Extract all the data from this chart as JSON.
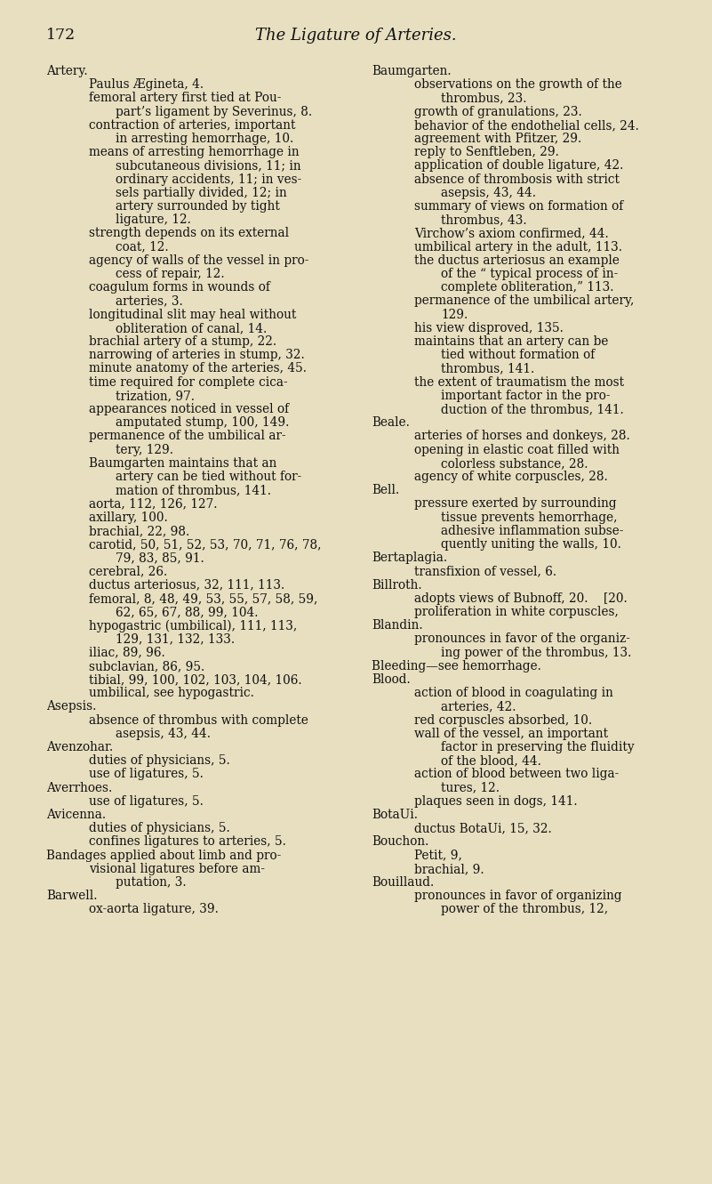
{
  "background_color": "#e8dfc0",
  "page_number": "172",
  "page_title": "The Ligature of Arteries.",
  "title_fontsize": 13.0,
  "page_num_fontsize": 12.5,
  "body_fontsize": 9.8,
  "left_column": [
    [
      "Artery.",
      0
    ],
    [
      "Paulus Ægineta, 4.",
      1
    ],
    [
      "femoral artery first tied at Pou-",
      1
    ],
    [
      "part’s ligament by Severinus, 8.",
      2
    ],
    [
      "contraction of arteries, important",
      1
    ],
    [
      "in arresting hemorrhage, 10.",
      2
    ],
    [
      "means of arresting hemorrhage in",
      1
    ],
    [
      "subcutaneous divisions, 11; in",
      2
    ],
    [
      "ordinary accidents, 11; in ves-",
      2
    ],
    [
      "sels partially divided, 12; in",
      2
    ],
    [
      "artery surrounded by tight",
      2
    ],
    [
      "ligature, 12.",
      2
    ],
    [
      "strength depends on its external",
      1
    ],
    [
      "coat, 12.",
      2
    ],
    [
      "agency of walls of the vessel in pro-",
      1
    ],
    [
      "cess of repair, 12.",
      2
    ],
    [
      "coagulum forms in wounds of",
      1
    ],
    [
      "arteries, 3.",
      2
    ],
    [
      "longitudinal slit may heal without",
      1
    ],
    [
      "obliteration of canal, 14.",
      2
    ],
    [
      "brachial artery of a stump, 22.",
      1
    ],
    [
      "narrowing of arteries in stump, 32.",
      1
    ],
    [
      "minute anatomy of the arteries, 45.",
      1
    ],
    [
      "time required for complete cica-",
      1
    ],
    [
      "trization, 97.",
      2
    ],
    [
      "appearances noticed in vessel of",
      1
    ],
    [
      "amputated stump, 100, 149.",
      2
    ],
    [
      "permanence of the umbilical ar-",
      1
    ],
    [
      "tery, 129.",
      2
    ],
    [
      "Baumgarten maintains that an",
      1
    ],
    [
      "artery can be tied without for-",
      2
    ],
    [
      "mation of thrombus, 141.",
      2
    ],
    [
      "aorta, 112, 126, 127.",
      1
    ],
    [
      "axillary, 100.",
      1
    ],
    [
      "brachial, 22, 98.",
      1
    ],
    [
      "carotid, 50, 51, 52, 53, 70, 71, 76, 78,",
      1
    ],
    [
      "79, 83, 85, 91.",
      2
    ],
    [
      "cerebral, 26.",
      1
    ],
    [
      "ductus arteriosus, 32, 111, 113.",
      1
    ],
    [
      "femoral, 8, 48, 49, 53, 55, 57, 58, 59,",
      1
    ],
    [
      "62, 65, 67, 88, 99, 104.",
      2
    ],
    [
      "hypogastric (umbilical), 111, 113,",
      1
    ],
    [
      "129, 131, 132, 133.",
      2
    ],
    [
      "iliac, 89, 96.",
      1
    ],
    [
      "subclavian, 86, 95.",
      1
    ],
    [
      "tibial, 99, 100, 102, 103, 104, 106.",
      1
    ],
    [
      "umbilical, see hypogastric.",
      1
    ],
    [
      "Asepsis.",
      0
    ],
    [
      "absence of thrombus with complete",
      1
    ],
    [
      "asepsis, 43, 44.",
      2
    ],
    [
      "Avenzohar.",
      0
    ],
    [
      "duties of physicians, 5.",
      1
    ],
    [
      "use of ligatures, 5.",
      1
    ],
    [
      "Averrhoes.",
      0
    ],
    [
      "use of ligatures, 5.",
      1
    ],
    [
      "Avicenna.",
      0
    ],
    [
      "duties of physicians, 5.",
      1
    ],
    [
      "confines ligatures to arteries, 5.",
      1
    ],
    [
      "Bandages applied about limb and pro-",
      0
    ],
    [
      "visional ligatures before am-",
      1
    ],
    [
      "putation, 3.",
      2
    ],
    [
      "Barwell.",
      0
    ],
    [
      "ox-aorta ligature, 39.",
      1
    ]
  ],
  "right_column": [
    [
      "Baumgarten.",
      0
    ],
    [
      "observations on the growth of the",
      1
    ],
    [
      "thrombus, 23.",
      2
    ],
    [
      "growth of granulations, 23.",
      1
    ],
    [
      "behavior of the endothelial cells, 24.",
      1
    ],
    [
      "agreement with Pfitzer, 29.",
      1
    ],
    [
      "reply to Senftleben, 29.",
      1
    ],
    [
      "application of double ligature, 42.",
      1
    ],
    [
      "absence of thrombosis with strict",
      1
    ],
    [
      "asepsis, 43, 44.",
      2
    ],
    [
      "summary of views on formation of",
      1
    ],
    [
      "thrombus, 43.",
      2
    ],
    [
      "Virchow’s axiom confirmed, 44.",
      1
    ],
    [
      "umbilical artery in the adult, 113.",
      1
    ],
    [
      "the ductus arteriosus an example",
      1
    ],
    [
      "of the “ typical process of in-",
      2
    ],
    [
      "complete obliteration,” 113.",
      2
    ],
    [
      "permanence of the umbilical artery,",
      1
    ],
    [
      "129.",
      2
    ],
    [
      "his view disproved, 135.",
      1
    ],
    [
      "maintains that an artery can be",
      1
    ],
    [
      "tied without formation of",
      2
    ],
    [
      "thrombus, 141.",
      2
    ],
    [
      "the extent of traumatism the most",
      1
    ],
    [
      "important factor in the pro-",
      2
    ],
    [
      "duction of the thrombus, 141.",
      2
    ],
    [
      "Beale.",
      0
    ],
    [
      "arteries of horses and donkeys, 28.",
      1
    ],
    [
      "opening in elastic coat filled with",
      1
    ],
    [
      "colorless substance, 28.",
      2
    ],
    [
      "agency of white corpuscles, 28.",
      1
    ],
    [
      "Bell.",
      0
    ],
    [
      "pressure exerted by surrounding",
      1
    ],
    [
      "tissue prevents hemorrhage,",
      2
    ],
    [
      "adhesive inflammation subse-",
      2
    ],
    [
      "quently uniting the walls, 10.",
      2
    ],
    [
      "Bertaplagia.",
      0
    ],
    [
      "transfixion of vessel, 6.",
      1
    ],
    [
      "Billroth.",
      0
    ],
    [
      "adopts views of Bubnoff, 20.    [20.",
      1
    ],
    [
      "proliferation in white corpuscles,",
      1
    ],
    [
      "Blandin.",
      0
    ],
    [
      "pronounces in favor of the organiz-",
      1
    ],
    [
      "ing power of the thrombus, 13.",
      2
    ],
    [
      "Bleeding—see hemorrhage.",
      0
    ],
    [
      "Blood.",
      0
    ],
    [
      "action of blood in coagulating in",
      1
    ],
    [
      "arteries, 42.",
      2
    ],
    [
      "red corpuscles absorbed, 10.",
      1
    ],
    [
      "wall of the vessel, an important",
      1
    ],
    [
      "factor in preserving the fluidity",
      2
    ],
    [
      "of the blood, 44.",
      2
    ],
    [
      "action of blood between two liga-",
      1
    ],
    [
      "tures, 12.",
      2
    ],
    [
      "plaques seen in dogs, 141.",
      1
    ],
    [
      "BotaUi.",
      0
    ],
    [
      "ductus BotaUi, 15, 32.",
      1
    ],
    [
      "Bouchon.",
      0
    ],
    [
      "Petit, 9,",
      1
    ],
    [
      "brachial, 9.",
      1
    ],
    [
      "Bouillaud.",
      0
    ],
    [
      "pronounces in favor of organizing",
      1
    ],
    [
      "power of the thrombus, 12,",
      2
    ]
  ]
}
